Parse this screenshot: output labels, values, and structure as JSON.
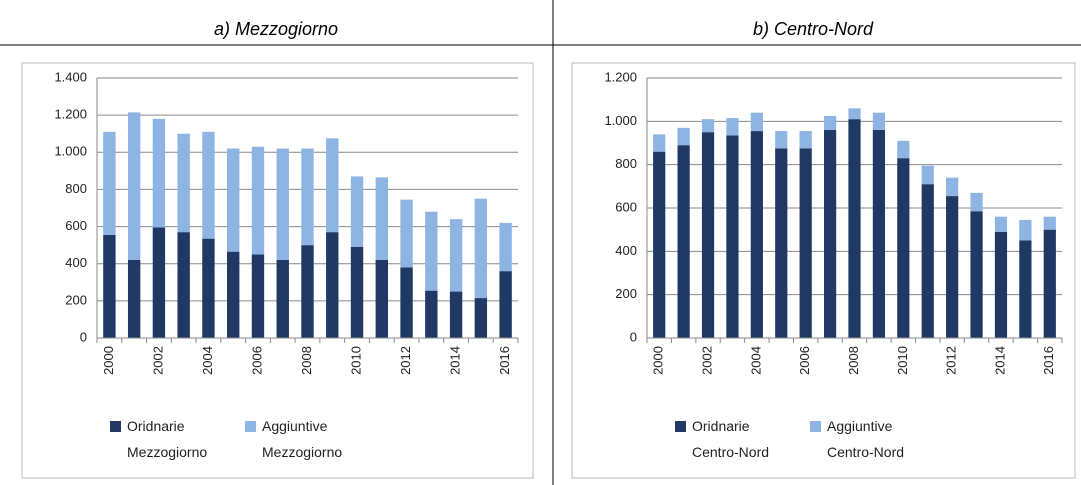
{
  "chart_data": [
    {
      "type": "stacked-bar",
      "title": "a) Mezzogiorno",
      "categories": [
        "2000",
        null,
        "2002",
        null,
        "2004",
        null,
        "2006",
        null,
        "2008",
        null,
        "2010",
        null,
        "2012",
        null,
        "2014",
        null,
        "2016"
      ],
      "series": [
        {
          "name": "Oridnarie Mezzogiorno",
          "color": "#1f3864",
          "values": [
            555,
            420,
            595,
            570,
            535,
            465,
            450,
            420,
            500,
            570,
            490,
            420,
            380,
            255,
            250,
            215,
            360
          ]
        },
        {
          "name": "Aggiuntive Mezzogiorno",
          "color": "#8db4e2",
          "values": [
            555,
            795,
            585,
            530,
            575,
            555,
            580,
            600,
            520,
            505,
            380,
            445,
            365,
            425,
            390,
            535,
            260
          ]
        }
      ],
      "ylim": [
        0,
        1400
      ],
      "yticks": [
        0,
        200,
        400,
        600,
        800,
        {
          "value": 1000,
          "label": "1.000"
        },
        {
          "value": 1200,
          "label": "1.200"
        },
        {
          "value": 1400,
          "label": "1.400"
        }
      ],
      "grid": true
    },
    {
      "type": "stacked-bar",
      "title": "b) Centro-Nord",
      "categories": [
        "2000",
        null,
        "2002",
        null,
        "2004",
        null,
        "2006",
        null,
        "2008",
        null,
        "2010",
        null,
        "2012",
        null,
        "2014",
        null,
        "2016"
      ],
      "series": [
        {
          "name": "Oridnarie Centro-Nord",
          "color": "#1f3864",
          "values": [
            860,
            890,
            950,
            935,
            955,
            875,
            875,
            960,
            1010,
            960,
            830,
            710,
            655,
            585,
            490,
            450,
            500
          ]
        },
        {
          "name": "Aggiuntive Centro-Nord",
          "color": "#8db4e2",
          "values": [
            80,
            80,
            60,
            80,
            85,
            80,
            80,
            65,
            50,
            80,
            80,
            85,
            85,
            85,
            70,
            95,
            60
          ]
        }
      ],
      "ylim": [
        0,
        1200
      ],
      "yticks": [
        0,
        200,
        400,
        600,
        800,
        {
          "value": 1000,
          "label": "1.000"
        },
        {
          "value": 1200,
          "label": "1.200"
        }
      ],
      "grid": true
    }
  ]
}
